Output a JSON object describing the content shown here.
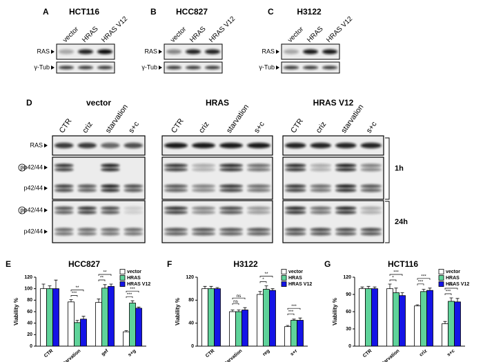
{
  "blots": [
    {
      "letter": "A",
      "title": "HCT116",
      "columns": [
        "vector",
        "HRAS",
        "HRAS V12"
      ],
      "rows": [
        "RAS",
        "γ-Tub"
      ]
    },
    {
      "letter": "B",
      "title": "HCC827",
      "columns": [
        "vector",
        "HRAS",
        "HRAS V12"
      ],
      "rows": [
        "RAS",
        "γ-Tub"
      ]
    },
    {
      "letter": "C",
      "title": "H3122",
      "columns": [
        "vector",
        "HRAS",
        "HRAS V12"
      ],
      "rows": [
        "RAS",
        "γ-Tub"
      ]
    }
  ],
  "panel_d": {
    "letter": "D",
    "groups": [
      "vector",
      "HRAS",
      "HRAS V12"
    ],
    "columns": [
      "CTR",
      "criz",
      "starvation",
      "s+c"
    ],
    "rows": [
      {
        "label": "RAS"
      },
      {
        "circled": "p",
        "label": "-p42/44"
      },
      {
        "label": "p42/44"
      },
      {
        "circled": "p",
        "label": "-p42/44"
      },
      {
        "label": "p42/44"
      }
    ],
    "timepoints": [
      "1h",
      "24h"
    ]
  },
  "chart_data": [
    {
      "type": "bar",
      "letter": "E",
      "title": "HCC827",
      "y_label": "Viability %",
      "categories": [
        "CTR",
        "starvation",
        "gef",
        "s+g"
      ],
      "series": [
        {
          "name": "vector",
          "color": "#ffffff",
          "values": [
            100,
            77,
            76,
            25
          ],
          "errors": [
            8,
            4,
            6,
            2
          ]
        },
        {
          "name": "HRAS",
          "color": "#5fd39a",
          "values": [
            100,
            41,
            101,
            75
          ],
          "errors": [
            5,
            4,
            6,
            4
          ]
        },
        {
          "name": "HRAS V12",
          "color": "#1414e6",
          "values": [
            100,
            47,
            104,
            66
          ],
          "errors": [
            15,
            5,
            4,
            2
          ]
        }
      ],
      "annotations": [
        null,
        [
          "**",
          "***"
        ],
        [
          "**",
          "**"
        ],
        [
          "***",
          "***"
        ]
      ],
      "ylim": [
        0,
        120
      ],
      "yticks": [
        0,
        20,
        40,
        60,
        80,
        100,
        120
      ],
      "legend": "upper right"
    },
    {
      "type": "bar",
      "letter": "F",
      "title": "H3122",
      "y_label": "Viability %",
      "categories": [
        "CTR",
        "starvation",
        "reg",
        "s+r"
      ],
      "series": [
        {
          "name": "vector",
          "color": "#ffffff",
          "values": [
            100,
            60,
            90,
            34
          ],
          "errors": [
            4,
            3,
            5,
            2
          ]
        },
        {
          "name": "HRAS",
          "color": "#5fd39a",
          "values": [
            100,
            60,
            99,
            45
          ],
          "errors": [
            4,
            3,
            6,
            2
          ]
        },
        {
          "name": "HRAS V12",
          "color": "#1414e6",
          "values": [
            100,
            63,
            97,
            45
          ],
          "errors": [
            2,
            4,
            3,
            4
          ]
        }
      ],
      "annotations": [
        null,
        [
          "ns",
          "ns"
        ],
        [
          "**",
          "*"
        ],
        [
          "***",
          "***"
        ]
      ],
      "ylim": [
        0,
        120
      ],
      "yticks": [
        0,
        40,
        80,
        120
      ],
      "legend": "upper right"
    },
    {
      "type": "bar",
      "letter": "G",
      "title": "HCT116",
      "y_label": "Viability %",
      "categories": [
        "CTR",
        "starvation",
        "criz",
        "s+c"
      ],
      "series": [
        {
          "name": "vector",
          "color": "#ffffff",
          "values": [
            100,
            100,
            70,
            39
          ],
          "errors": [
            3,
            8,
            2,
            4
          ]
        },
        {
          "name": "HRAS",
          "color": "#5fd39a",
          "values": [
            100,
            93,
            95,
            78
          ],
          "errors": [
            4,
            8,
            4,
            6
          ]
        },
        {
          "name": "HRAS V12",
          "color": "#1414e6",
          "values": [
            100,
            88,
            97,
            77
          ],
          "errors": [
            3,
            5,
            4,
            6
          ]
        }
      ],
      "annotations": [
        null,
        [
          "***",
          "*"
        ],
        [
          "***",
          "***"
        ],
        [
          "***",
          "***"
        ]
      ],
      "ylim": [
        0,
        120
      ],
      "yticks": [
        0,
        30,
        60,
        90,
        120
      ],
      "legend": "upper right"
    }
  ]
}
